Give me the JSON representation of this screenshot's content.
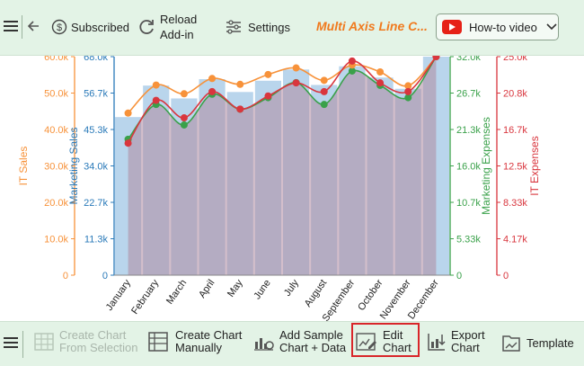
{
  "toolbar_top": {
    "subscribed": "Subscribed",
    "reload_line1": "Reload",
    "reload_line2": "Add-in",
    "settings": "Settings",
    "title": "Multi Axis Line C...",
    "howto": "How-to video"
  },
  "toolbar_bottom": {
    "create_selection_1": "Create Chart",
    "create_selection_2": "From Selection",
    "create_manual_1": "Create Chart",
    "create_manual_2": "Manually",
    "add_sample_1": "Add Sample",
    "add_sample_2": "Chart + Data",
    "edit_1": "Edit",
    "edit_2": "Chart",
    "export_1": "Export",
    "export_2": "Chart",
    "template": "Template"
  },
  "colors": {
    "it_sales": "#f7923a",
    "marketing_sales": "#2a7ab9",
    "marketing_expenses": "#3aa14a",
    "it_expenses": "#d9363e",
    "bar_fill": "#b9d5ec",
    "area_fill": "#b08aa0",
    "accent_title": "#f07a1e",
    "edit_highlight": "#d9262a"
  },
  "chart_data": {
    "type": "line",
    "categories": [
      "January",
      "February",
      "March",
      "April",
      "May",
      "June",
      "July",
      "August",
      "September",
      "October",
      "November",
      "December"
    ],
    "axes": {
      "it_sales": {
        "label": "IT Sales",
        "ticks": [
          "0",
          "10.0k",
          "20.0k",
          "30.0k",
          "40.0k",
          "50.0k",
          "60.0k"
        ],
        "range": [
          0,
          60000
        ]
      },
      "marketing_sales": {
        "label": "Marketing Sales",
        "ticks": [
          "0",
          "11.3k",
          "22.7k",
          "34.0k",
          "45.3k",
          "56.7k",
          "68.0k"
        ],
        "range": [
          0,
          68000
        ]
      },
      "marketing_expenses": {
        "label": "Marketing Expenses",
        "ticks": [
          "0",
          "5.33k",
          "10.7k",
          "16.0k",
          "21.3k",
          "26.7k",
          "32.0k"
        ],
        "range": [
          0,
          32000
        ]
      },
      "it_expenses": {
        "label": "IT Expenses",
        "ticks": [
          "0",
          "4.17k",
          "8.33k",
          "12.5k",
          "16.7k",
          "20.8k",
          "25.0k"
        ],
        "range": [
          0,
          25000
        ]
      }
    },
    "series": [
      {
        "name": "Marketing Sales",
        "kind": "bar",
        "axis": "marketing_sales",
        "values": [
          49200,
          59000,
          55000,
          61000,
          57000,
          60500,
          64000,
          59200,
          65000,
          61500,
          58000,
          68000
        ]
      },
      {
        "name": "IT Sales",
        "kind": "line",
        "axis": "it_sales",
        "values": [
          44500,
          52200,
          49800,
          54000,
          52400,
          55100,
          56900,
          53500,
          57700,
          55800,
          52000,
          60000
        ]
      },
      {
        "name": "Marketing Expenses",
        "kind": "line",
        "axis": "marketing_expenses",
        "values": [
          19900,
          25000,
          22000,
          26500,
          24300,
          26000,
          28200,
          25000,
          29900,
          27800,
          26000,
          32000
        ]
      },
      {
        "name": "IT Expenses",
        "kind": "line",
        "axis": "it_expenses",
        "values": [
          15100,
          20000,
          18000,
          21000,
          19000,
          20500,
          22000,
          21000,
          24500,
          22000,
          21000,
          25000
        ]
      }
    ]
  }
}
